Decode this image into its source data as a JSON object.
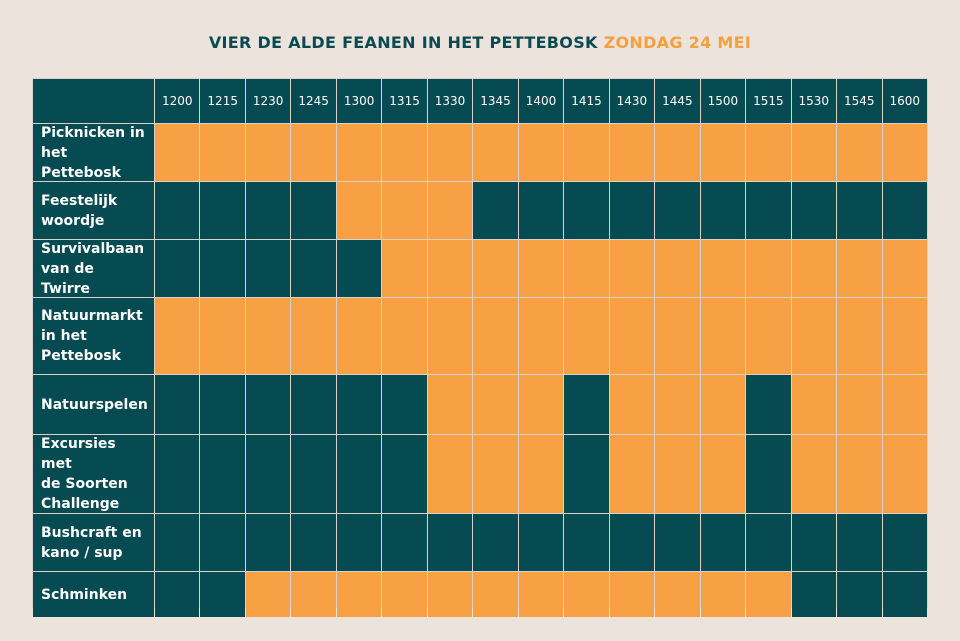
{
  "title": {
    "main": "VIER DE ALDE FEANEN IN HET PETTEBOSK",
    "date": "ZONDAG 24 MEI"
  },
  "colors": {
    "available": "#f7a044",
    "unavailable": "#064a52",
    "background": "#ece4dc"
  },
  "times": [
    "1200",
    "1215",
    "1230",
    "1245",
    "1300",
    "1315",
    "1330",
    "1345",
    "1400",
    "1415",
    "1430",
    "1445",
    "1500",
    "1515",
    "1530",
    "1545",
    "1600"
  ],
  "rows": [
    {
      "label": "Picknicken in\nhet Pettebosk",
      "slots": [
        1,
        1,
        1,
        1,
        1,
        1,
        1,
        1,
        1,
        1,
        1,
        1,
        1,
        1,
        1,
        1,
        1
      ]
    },
    {
      "label": "Feestelijk\nwoordje",
      "slots": [
        0,
        0,
        0,
        0,
        1,
        1,
        1,
        0,
        0,
        0,
        0,
        0,
        0,
        0,
        0,
        0,
        0
      ]
    },
    {
      "label": "Survivalbaan\nvan de Twirre",
      "slots": [
        0,
        0,
        0,
        0,
        0,
        1,
        1,
        1,
        1,
        1,
        1,
        1,
        1,
        1,
        1,
        1,
        1
      ]
    },
    {
      "label": "Natuurmarkt\nin het\nPettebosk",
      "slots": [
        1,
        1,
        1,
        1,
        1,
        1,
        1,
        1,
        1,
        1,
        1,
        1,
        1,
        1,
        1,
        1,
        1
      ]
    },
    {
      "label": "Natuurspelen",
      "slots": [
        0,
        0,
        0,
        0,
        0,
        0,
        1,
        1,
        1,
        0,
        1,
        1,
        1,
        0,
        1,
        1,
        1
      ]
    },
    {
      "label": "Excursies met\nde Soorten\nChallenge",
      "slots": [
        0,
        0,
        0,
        0,
        0,
        0,
        1,
        1,
        1,
        0,
        1,
        1,
        1,
        0,
        1,
        1,
        1
      ]
    },
    {
      "label": "Bushcraft en\nkano / sup",
      "slots": [
        0,
        0,
        0,
        0,
        0,
        0,
        0,
        0,
        0,
        0,
        0,
        0,
        0,
        0,
        0,
        0,
        0
      ]
    },
    {
      "label": "Schminken",
      "slots": [
        0,
        0,
        1,
        1,
        1,
        1,
        1,
        1,
        1,
        1,
        1,
        1,
        1,
        1,
        0,
        0,
        0
      ]
    }
  ]
}
